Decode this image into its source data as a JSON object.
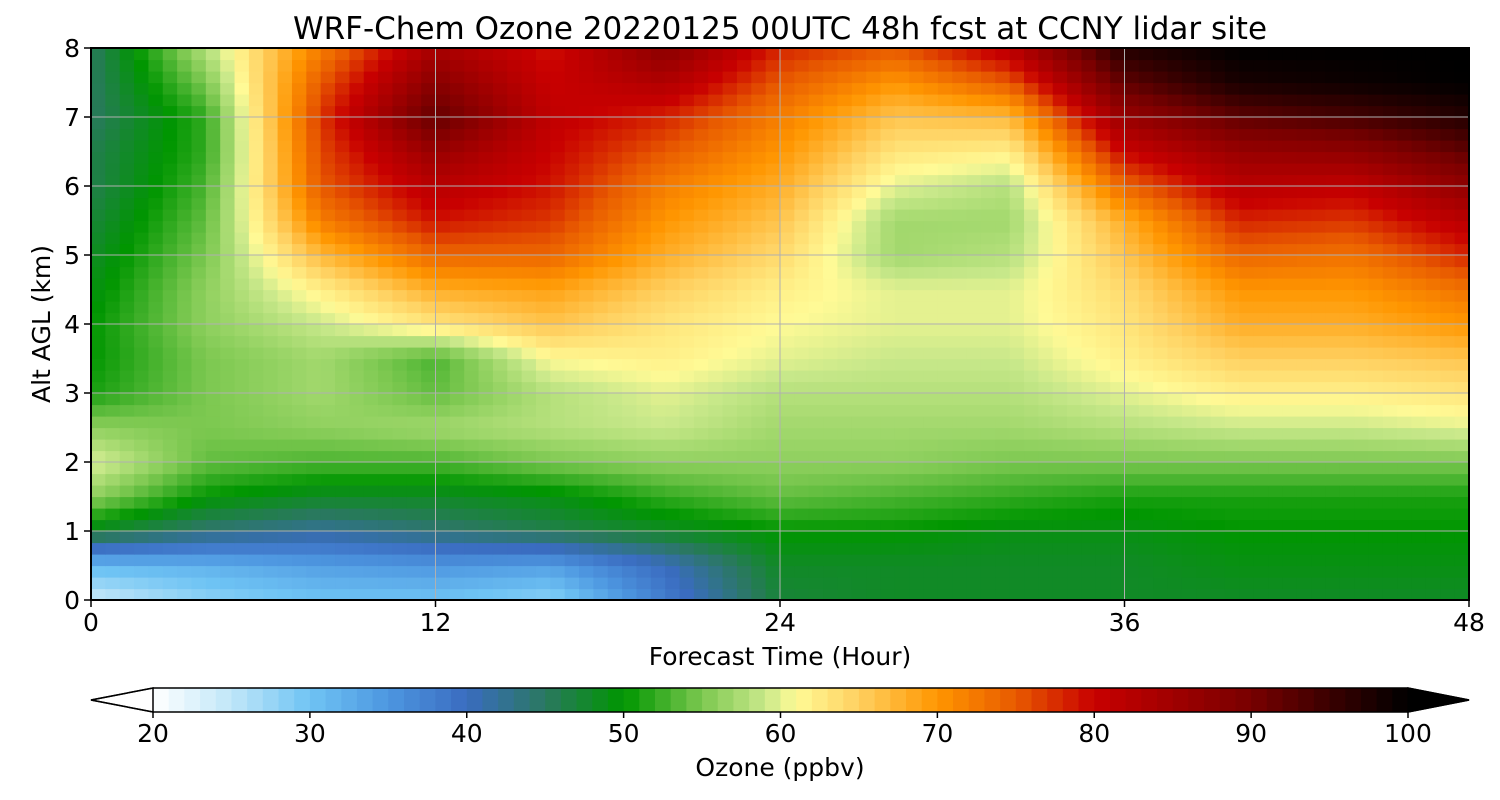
{
  "chart_data": {
    "type": "heatmap",
    "title": "WRF-Chem Ozone  20220125 00UTC 48h fcst at CCNY lidar site",
    "xlabel": "Forecast Time (Hour)",
    "ylabel": "Alt AGL (km)",
    "xlim": [
      0,
      48
    ],
    "ylim": [
      0,
      8
    ],
    "x_ticks": [
      "0",
      "12",
      "24",
      "36",
      "48"
    ],
    "y_ticks": [
      "0",
      "1",
      "2",
      "3",
      "4",
      "5",
      "6",
      "7",
      "8"
    ],
    "grid": true,
    "x_hours": [
      0,
      4,
      8,
      12,
      16,
      20,
      24,
      28,
      32,
      36,
      40,
      44,
      48
    ],
    "y_km": [
      0,
      0.5,
      1,
      1.5,
      2,
      2.5,
      3,
      3.5,
      4,
      4.5,
      5,
      5.5,
      6,
      6.5,
      7,
      7.5,
      8
    ],
    "ozone_ppbv": [
      [
        24,
        28,
        30,
        30,
        28,
        38,
        47,
        48,
        48,
        48,
        48,
        48,
        48
      ],
      [
        31,
        32,
        34,
        35,
        34,
        40,
        48,
        48,
        48,
        48,
        49,
        49,
        49
      ],
      [
        48,
        44,
        42,
        44,
        46,
        48,
        50,
        50,
        49,
        49,
        50,
        50,
        50
      ],
      [
        56,
        50,
        48,
        48,
        49,
        52,
        54,
        53,
        52,
        51,
        51,
        51,
        51
      ],
      [
        60,
        54,
        53,
        53,
        55,
        56,
        56,
        56,
        55,
        55,
        55,
        55,
        55
      ],
      [
        56,
        55,
        56,
        57,
        58,
        59,
        57,
        57,
        57,
        58,
        59,
        59,
        60
      ],
      [
        51,
        55,
        57,
        54,
        58,
        60,
        58,
        58,
        58,
        60,
        62,
        62,
        63
      ],
      [
        50,
        55,
        57,
        53,
        61,
        62,
        60,
        59,
        59,
        62,
        65,
        65,
        66
      ],
      [
        50,
        56,
        59,
        63,
        66,
        63,
        61,
        60,
        60,
        63,
        68,
        68,
        70
      ],
      [
        49,
        56,
        62,
        68,
        69,
        65,
        62,
        60,
        60,
        64,
        70,
        70,
        73
      ],
      [
        48,
        55,
        67,
        74,
        74,
        68,
        64,
        57,
        58,
        66,
        74,
        73,
        78
      ],
      [
        47,
        54,
        72,
        79,
        77,
        70,
        66,
        57,
        57,
        68,
        78,
        77,
        82
      ],
      [
        46,
        53,
        75,
        82,
        79,
        72,
        68,
        60,
        58,
        74,
        82,
        81,
        87
      ],
      [
        46,
        52,
        76,
        86,
        80,
        75,
        70,
        63,
        62,
        80,
        86,
        87,
        92
      ],
      [
        45,
        52,
        77,
        92,
        81,
        78,
        72,
        66,
        67,
        86,
        92,
        94,
        97
      ],
      [
        45,
        55,
        75,
        88,
        80,
        83,
        75,
        70,
        75,
        92,
        98,
        99,
        100
      ],
      [
        45,
        58,
        72,
        84,
        79,
        88,
        78,
        75,
        82,
        97,
        100,
        100,
        100
      ]
    ],
    "colorbar": {
      "label": "Ozone  (ppbv)",
      "min": 20,
      "max": 100,
      "ticks": [
        "20",
        "30",
        "40",
        "50",
        "60",
        "70",
        "80",
        "90",
        "100"
      ],
      "extend": "both"
    },
    "colormap_stops": [
      {
        "v": 20,
        "c": "#ffffff"
      },
      {
        "v": 25,
        "c": "#c0e6f8"
      },
      {
        "v": 30,
        "c": "#6fc4f4"
      },
      {
        "v": 35,
        "c": "#4d96e0"
      },
      {
        "v": 40,
        "c": "#3a6cc0"
      },
      {
        "v": 45,
        "c": "#2a7860"
      },
      {
        "v": 50,
        "c": "#009600"
      },
      {
        "v": 55,
        "c": "#7cc850"
      },
      {
        "v": 59,
        "c": "#c8e88a"
      },
      {
        "v": 61,
        "c": "#fffa96"
      },
      {
        "v": 65,
        "c": "#ffd060"
      },
      {
        "v": 70,
        "c": "#ff9600"
      },
      {
        "v": 75,
        "c": "#e85a00"
      },
      {
        "v": 80,
        "c": "#c80000"
      },
      {
        "v": 90,
        "c": "#780000"
      },
      {
        "v": 95,
        "c": "#3a0000"
      },
      {
        "v": 100,
        "c": "#000000"
      }
    ]
  }
}
